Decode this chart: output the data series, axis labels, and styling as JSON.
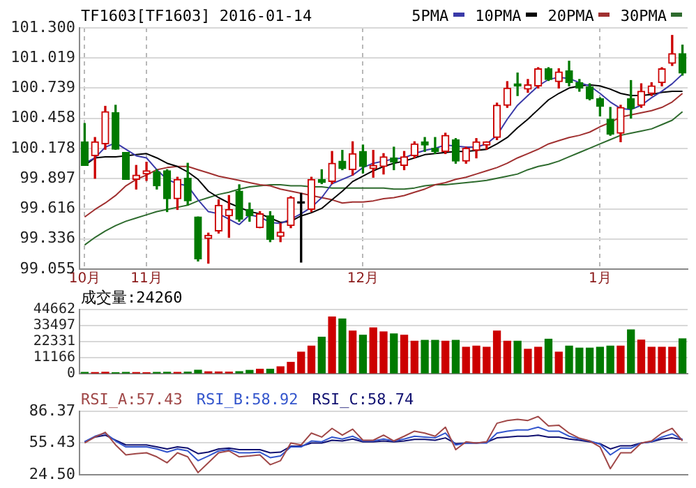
{
  "chart_data": [
    {
      "type": "candlestick",
      "title": "TF1603[TF1603] 2016-01-14",
      "categories": [
        "10月",
        null,
        null,
        null,
        null,
        null,
        "11月",
        null,
        null,
        null,
        null,
        null,
        null,
        null,
        null,
        null,
        null,
        null,
        null,
        null,
        null,
        null,
        null,
        null,
        null,
        null,
        null,
        "12月",
        null,
        null,
        null,
        null,
        null,
        null,
        null,
        null,
        null,
        null,
        null,
        null,
        null,
        null,
        null,
        null,
        null,
        null,
        null,
        null,
        null,
        null,
        "1月",
        null,
        null,
        null,
        null,
        null,
        null,
        null,
        null
      ],
      "ohlc": [
        [
          100.24,
          100.41,
          100.02,
          100.02
        ],
        [
          100.11,
          100.28,
          99.9,
          100.24
        ],
        [
          100.22,
          100.57,
          100.17,
          100.52
        ],
        [
          100.51,
          100.58,
          100.17,
          100.17
        ],
        [
          100.14,
          100.14,
          99.89,
          99.89
        ],
        [
          99.89,
          100.02,
          99.8,
          99.93
        ],
        [
          99.94,
          100.05,
          99.88,
          99.97
        ],
        [
          99.96,
          99.98,
          99.8,
          99.83
        ],
        [
          99.97,
          99.98,
          99.59,
          99.71
        ],
        [
          99.71,
          99.91,
          99.61,
          99.89
        ],
        [
          99.9,
          100.04,
          99.65,
          99.69
        ],
        [
          99.54,
          99.54,
          99.13,
          99.15
        ],
        [
          99.34,
          99.39,
          99.11,
          99.37
        ],
        [
          99.41,
          99.7,
          99.39,
          99.65
        ],
        [
          99.55,
          99.74,
          99.35,
          99.61
        ],
        [
          99.78,
          99.84,
          99.5,
          99.52
        ],
        [
          99.61,
          99.67,
          99.5,
          99.55
        ],
        [
          99.44,
          99.59,
          99.44,
          99.57
        ],
        [
          99.55,
          99.59,
          99.31,
          99.33
        ],
        [
          99.36,
          99.48,
          99.31,
          99.4
        ],
        [
          99.46,
          99.73,
          99.44,
          99.72
        ],
        [
          99.67,
          99.76,
          99.12,
          99.67
        ],
        [
          99.61,
          99.91,
          99.59,
          99.89
        ],
        [
          99.89,
          99.98,
          99.85,
          99.86
        ],
        [
          99.87,
          100.15,
          99.85,
          100.04
        ],
        [
          100.06,
          100.16,
          99.98,
          99.99
        ],
        [
          99.98,
          100.24,
          99.93,
          100.13
        ],
        [
          100.15,
          100.21,
          99.95,
          100.01
        ],
        [
          99.99,
          100.16,
          99.91,
          100.02
        ],
        [
          100.01,
          100.13,
          99.94,
          100.1
        ],
        [
          100.09,
          100.19,
          99.98,
          100.05
        ],
        [
          100.02,
          100.15,
          99.98,
          100.1
        ],
        [
          100.11,
          100.24,
          100.09,
          100.22
        ],
        [
          100.24,
          100.28,
          100.15,
          100.21
        ],
        [
          100.18,
          100.28,
          100.13,
          100.15
        ],
        [
          100.15,
          100.32,
          100.13,
          100.3
        ],
        [
          100.26,
          100.27,
          100.04,
          100.06
        ],
        [
          100.06,
          100.19,
          100.04,
          100.18
        ],
        [
          100.16,
          100.27,
          100.09,
          100.24
        ],
        [
          100.21,
          100.24,
          100.17,
          100.24
        ],
        [
          100.28,
          100.6,
          100.26,
          100.58
        ],
        [
          100.58,
          100.8,
          100.56,
          100.74
        ],
        [
          100.78,
          100.88,
          100.67,
          100.76
        ],
        [
          100.73,
          100.82,
          100.7,
          100.77
        ],
        [
          100.76,
          100.93,
          100.74,
          100.92
        ],
        [
          100.92,
          100.93,
          100.81,
          100.82
        ],
        [
          100.8,
          100.92,
          100.74,
          100.89
        ],
        [
          100.9,
          100.99,
          100.76,
          100.79
        ],
        [
          100.79,
          100.82,
          100.71,
          100.74
        ],
        [
          100.75,
          100.78,
          100.63,
          100.64
        ],
        [
          100.64,
          100.65,
          100.48,
          100.57
        ],
        [
          100.45,
          100.56,
          100.3,
          100.31
        ],
        [
          100.32,
          100.58,
          100.24,
          100.56
        ],
        [
          100.64,
          100.81,
          100.46,
          100.55
        ],
        [
          100.58,
          100.78,
          100.56,
          100.71
        ],
        [
          100.69,
          100.79,
          100.67,
          100.76
        ],
        [
          100.79,
          100.93,
          100.76,
          100.92
        ],
        [
          100.97,
          101.23,
          100.95,
          101.06
        ],
        [
          101.06,
          101.14,
          100.86,
          100.88
        ]
      ],
      "colors": [
        "#007a00",
        "#cc0000",
        "#cc0000",
        "#007a00",
        "#007a00",
        "#cc0000",
        "#cc0000",
        "#007a00",
        "#007a00",
        "#cc0000",
        "#007a00",
        "#007a00",
        "#cc0000",
        "#cc0000",
        "#cc0000",
        "#007a00",
        "#007a00",
        "#cc0000",
        "#007a00",
        "#cc0000",
        "#cc0000",
        "#000000",
        "#cc0000",
        "#007a00",
        "#cc0000",
        "#007a00",
        "#cc0000",
        "#007a00",
        "#cc0000",
        "#cc0000",
        "#007a00",
        "#cc0000",
        "#cc0000",
        "#007a00",
        "#007a00",
        "#cc0000",
        "#007a00",
        "#cc0000",
        "#cc0000",
        "#cc0000",
        "#cc0000",
        "#cc0000",
        "#007a00",
        "#cc0000",
        "#cc0000",
        "#007a00",
        "#cc0000",
        "#007a00",
        "#007a00",
        "#007a00",
        "#007a00",
        "#007a00",
        "#cc0000",
        "#007a00",
        "#cc0000",
        "#cc0000",
        "#cc0000",
        "#cc0000",
        "#007a00"
      ],
      "series": [
        {
          "type": "line",
          "name": "5PMA",
          "color": "#3a3aa8",
          "values": [
            100.04,
            100.09,
            100.19,
            100.23,
            100.17,
            100.11,
            100.09,
            99.98,
            99.89,
            99.85,
            99.83,
            99.7,
            99.59,
            99.57,
            99.52,
            99.47,
            99.56,
            99.54,
            99.49,
            99.48,
            99.52,
            99.57,
            99.63,
            99.72,
            99.85,
            99.89,
            99.93,
            100.0,
            100.04,
            100.06,
            100.08,
            100.09,
            100.13,
            100.16,
            100.18,
            100.21,
            100.2,
            100.19,
            100.19,
            100.22,
            100.3,
            100.45,
            100.58,
            100.67,
            100.76,
            100.82,
            100.84,
            100.83,
            100.79,
            100.76,
            100.69,
            100.61,
            100.55,
            100.54,
            100.58,
            100.65,
            100.71,
            100.78,
            100.87
          ]
        },
        {
          "type": "line",
          "name": "10PMA",
          "color": "#000000",
          "values": [
            100.02,
            100.09,
            100.1,
            100.1,
            100.11,
            100.12,
            100.13,
            100.09,
            100.04,
            100.01,
            99.96,
            99.89,
            99.78,
            99.72,
            99.67,
            99.63,
            99.59,
            99.57,
            99.53,
            99.49,
            99.5,
            99.55,
            99.58,
            99.62,
            99.7,
            99.78,
            99.87,
            99.92,
            99.97,
            100.01,
            100.04,
            100.06,
            100.09,
            100.12,
            100.13,
            100.14,
            100.15,
            100.15,
            100.16,
            100.17,
            100.22,
            100.28,
            100.37,
            100.45,
            100.54,
            100.63,
            100.69,
            100.74,
            100.76,
            100.77,
            100.76,
            100.73,
            100.69,
            100.67,
            100.67,
            100.68,
            100.7,
            100.71,
            100.71
          ]
        },
        {
          "type": "line",
          "name": "20PMA",
          "color": "#a03030",
          "values": [
            99.54,
            99.61,
            99.67,
            99.74,
            99.83,
            99.89,
            99.93,
            99.98,
            100.0,
            100.01,
            100.01,
            99.98,
            99.95,
            99.92,
            99.9,
            99.88,
            99.86,
            99.84,
            99.83,
            99.8,
            99.78,
            99.76,
            99.74,
            99.72,
            99.7,
            99.67,
            99.68,
            99.68,
            99.69,
            99.71,
            99.72,
            99.74,
            99.77,
            99.8,
            99.84,
            99.86,
            99.89,
            99.91,
            99.94,
            99.97,
            100.0,
            100.04,
            100.09,
            100.13,
            100.17,
            100.22,
            100.25,
            100.28,
            100.3,
            100.33,
            100.38,
            100.42,
            100.47,
            100.49,
            100.51,
            100.53,
            100.56,
            100.61,
            100.69
          ]
        },
        {
          "type": "line",
          "name": "30PMA",
          "color": "#2e6b2e",
          "values": [
            99.28,
            99.35,
            99.41,
            99.46,
            99.5,
            99.53,
            99.56,
            99.59,
            99.61,
            99.63,
            99.65,
            99.69,
            99.72,
            99.75,
            99.77,
            99.8,
            99.82,
            99.83,
            99.84,
            99.84,
            99.83,
            99.83,
            99.82,
            99.82,
            99.81,
            99.81,
            99.81,
            99.81,
            99.81,
            99.81,
            99.8,
            99.8,
            99.81,
            99.83,
            99.84,
            99.84,
            99.85,
            99.86,
            99.87,
            99.88,
            99.9,
            99.92,
            99.94,
            99.98,
            100.01,
            100.03,
            100.06,
            100.1,
            100.14,
            100.18,
            100.22,
            100.26,
            100.3,
            100.32,
            100.34,
            100.36,
            100.4,
            100.44,
            100.52
          ]
        }
      ],
      "ylim": [
        99.055,
        101.3
      ],
      "yticks": [
        99.055,
        99.336,
        99.616,
        99.897,
        100.178,
        100.458,
        100.739,
        101.019,
        {
          "value": 101.3,
          "label": "101.300"
        }
      ],
      "grid": true,
      "legend": "top right",
      "marker": "none",
      "line_style": "solid"
    },
    {
      "type": "bar",
      "title": "成交量:24260",
      "categories": [
        null,
        null,
        null,
        null,
        null,
        null,
        null,
        null,
        null,
        null,
        null,
        null,
        null,
        null,
        null,
        null,
        null,
        null,
        null,
        null,
        null,
        null,
        null,
        null,
        null,
        null,
        null,
        null,
        null,
        null,
        null,
        null,
        null,
        null,
        null,
        null,
        null,
        null,
        null,
        null,
        null,
        null,
        null,
        null,
        null,
        null,
        null,
        null,
        null,
        null,
        null,
        null,
        null,
        null,
        null,
        null,
        null,
        null,
        null
      ],
      "values": [
        900,
        800,
        1000,
        700,
        900,
        800,
        700,
        900,
        1000,
        900,
        1100,
        2400,
        1300,
        1200,
        1100,
        1400,
        2300,
        3100,
        3100,
        4800,
        7900,
        15000,
        19200,
        25400,
        39500,
        38100,
        29700,
        26800,
        31900,
        29100,
        27700,
        26800,
        22600,
        23200,
        23200,
        22600,
        23200,
        18400,
        19200,
        18400,
        29700,
        22600,
        22600,
        17000,
        18400,
        24000,
        15000,
        19200,
        17800,
        17800,
        18400,
        19200,
        19200,
        30500,
        23400,
        18400,
        18400,
        18400,
        24260
      ],
      "colors": [
        "#007a00",
        "#cc0000",
        "#cc0000",
        "#007a00",
        "#007a00",
        "#cc0000",
        "#cc0000",
        "#007a00",
        "#007a00",
        "#cc0000",
        "#007a00",
        "#007a00",
        "#cc0000",
        "#cc0000",
        "#cc0000",
        "#007a00",
        "#007a00",
        "#cc0000",
        "#007a00",
        "#cc0000",
        "#cc0000",
        "#cc0000",
        "#cc0000",
        "#007a00",
        "#cc0000",
        "#007a00",
        "#cc0000",
        "#007a00",
        "#cc0000",
        "#cc0000",
        "#007a00",
        "#cc0000",
        "#cc0000",
        "#007a00",
        "#007a00",
        "#cc0000",
        "#007a00",
        "#cc0000",
        "#cc0000",
        "#cc0000",
        "#cc0000",
        "#cc0000",
        "#007a00",
        "#cc0000",
        "#cc0000",
        "#007a00",
        "#cc0000",
        "#007a00",
        "#007a00",
        "#007a00",
        "#007a00",
        "#007a00",
        "#cc0000",
        "#007a00",
        "#cc0000",
        "#cc0000",
        "#cc0000",
        "#cc0000",
        "#007a00"
      ],
      "ylim": [
        0,
        44662
      ],
      "yticks": [
        0,
        11166,
        22331,
        33497,
        44662
      ],
      "grid": true,
      "tick_labels": "y"
    },
    {
      "type": "line",
      "categories": [
        null,
        null,
        null,
        null,
        null,
        null,
        null,
        null,
        null,
        null,
        null,
        null,
        null,
        null,
        null,
        null,
        null,
        null,
        null,
        null,
        null,
        null,
        null,
        null,
        null,
        null,
        null,
        null,
        null,
        null,
        null,
        null,
        null,
        null,
        null,
        null,
        null,
        null,
        null,
        null,
        null,
        null,
        null,
        null,
        null,
        null,
        null,
        null,
        null,
        null,
        null,
        null,
        null,
        null,
        null,
        null,
        null,
        null,
        null
      ],
      "series": [
        {
          "name": "RSI_A:57.43",
          "color": "#a04848",
          "values": [
            55.4,
            61.2,
            65.9,
            53.5,
            43.8,
            45.0,
            45.8,
            41.9,
            36.1,
            45.8,
            41.9,
            26.5,
            36.1,
            45.8,
            47.7,
            41.9,
            42.7,
            43.8,
            34.2,
            38.1,
            55.4,
            53.5,
            65.1,
            61.2,
            69.7,
            63.1,
            68.9,
            58.1,
            58.1,
            63.1,
            57.4,
            62.0,
            67.0,
            65.1,
            62.0,
            70.9,
            48.9,
            56.6,
            55.4,
            56.6,
            74.7,
            77.4,
            78.6,
            77.4,
            81.3,
            72.0,
            72.8,
            65.1,
            60.1,
            57.4,
            51.6,
            30.3,
            45.8,
            45.8,
            55.4,
            57.4,
            65.1,
            69.7,
            57.43
          ]
        },
        {
          "name": "RSI_B:58.92",
          "color": "#3355cc",
          "values": [
            56.6,
            62.0,
            65.1,
            57.4,
            51.6,
            51.6,
            51.6,
            49.6,
            46.5,
            49.6,
            47.7,
            38.1,
            42.7,
            47.7,
            48.9,
            45.8,
            45.8,
            46.5,
            41.1,
            42.7,
            51.6,
            51.6,
            57.4,
            56.6,
            61.2,
            59.3,
            62.0,
            57.4,
            57.4,
            59.3,
            57.4,
            59.3,
            62.0,
            61.2,
            60.4,
            65.1,
            53.5,
            55.4,
            55.4,
            55.4,
            65.1,
            67.0,
            68.2,
            68.2,
            70.9,
            67.0,
            67.0,
            62.0,
            59.3,
            57.4,
            54.3,
            43.8,
            50.4,
            50.4,
            55.4,
            56.6,
            61.2,
            64.3,
            58.92
          ]
        },
        {
          "name": "RSI_C:58.74",
          "color": "#101070",
          "values": [
            56.6,
            61.2,
            63.1,
            58.1,
            53.5,
            53.5,
            53.5,
            51.6,
            49.6,
            51.6,
            50.4,
            45.0,
            46.5,
            49.6,
            50.4,
            48.9,
            48.9,
            48.9,
            45.8,
            46.5,
            52.3,
            52.3,
            55.4,
            55.4,
            58.1,
            57.4,
            59.3,
            56.6,
            56.6,
            57.4,
            56.6,
            57.4,
            58.9,
            58.9,
            58.1,
            60.4,
            54.7,
            55.4,
            55.4,
            56.2,
            60.4,
            61.2,
            62.0,
            62.0,
            63.1,
            61.2,
            61.2,
            59.3,
            58.1,
            56.6,
            54.7,
            49.6,
            52.7,
            52.7,
            55.4,
            56.6,
            59.3,
            60.4,
            58.74
          ]
        }
      ],
      "ylim": [
        24.5,
        86.37
      ],
      "yticks": [
        {
          "value": 24.5,
          "label": "24.50"
        },
        55.43,
        86.37
      ],
      "grid": true,
      "legend": "top left",
      "tick_labels": "y",
      "marker": "none"
    }
  ]
}
